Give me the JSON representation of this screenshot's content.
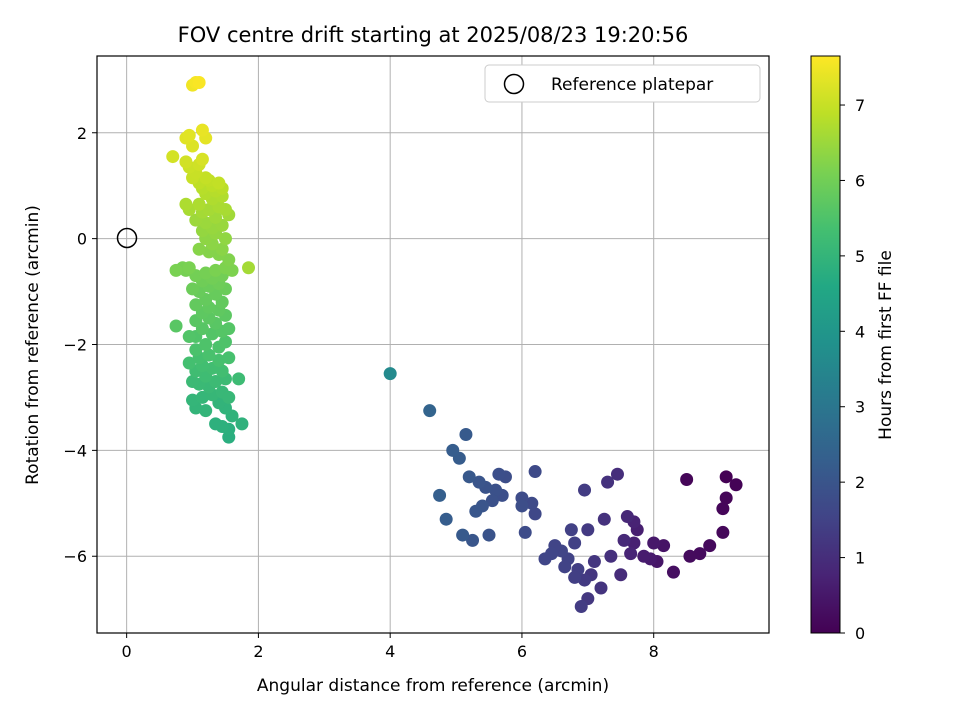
{
  "chart_data": {
    "type": "scatter",
    "title": "FOV centre drift starting at 2025/08/23 19:20:56",
    "xlabel": "Angular distance from reference (arcmin)",
    "ylabel": "Rotation from reference (arcmin)",
    "xlim": [
      -0.45,
      9.75
    ],
    "ylim": [
      -7.45,
      3.45
    ],
    "xticks": [
      0,
      2,
      4,
      6,
      8
    ],
    "xtick_labels": [
      "0",
      "2",
      "4",
      "6",
      "8"
    ],
    "yticks": [
      -6,
      -4,
      -2,
      0,
      2
    ],
    "ytick_labels": [
      "−6",
      "−4",
      "−2",
      "0",
      "2"
    ],
    "grid": true,
    "legend_position": "top-right",
    "reference": {
      "name": "Reference platepar",
      "x": 0,
      "y": 0
    },
    "colorbar": {
      "label": "Hours from first FF file",
      "colormap": "viridis",
      "min": 0,
      "max": 7.65,
      "ticks": [
        0,
        1,
        2,
        3,
        4,
        5,
        6,
        7
      ],
      "tick_labels": [
        "0",
        "1",
        "2",
        "3",
        "4",
        "5",
        "6",
        "7"
      ]
    },
    "series": [
      {
        "points": [
          [
            9.1,
            -4.5,
            0.0
          ],
          [
            9.25,
            -4.65,
            0.05
          ],
          [
            9.1,
            -4.9,
            0.1
          ],
          [
            9.05,
            -5.1,
            0.12
          ],
          [
            9.05,
            -5.55,
            0.15
          ],
          [
            8.85,
            -5.8,
            0.18
          ],
          [
            8.7,
            -5.95,
            0.2
          ],
          [
            8.55,
            -6.0,
            0.22
          ],
          [
            8.5,
            -4.55,
            0.1
          ],
          [
            8.3,
            -6.3,
            0.3
          ],
          [
            8.15,
            -5.8,
            0.4
          ],
          [
            8.05,
            -6.1,
            0.45
          ],
          [
            8.0,
            -5.75,
            0.5
          ],
          [
            7.95,
            -6.05,
            0.55
          ],
          [
            7.85,
            -6.0,
            0.6
          ],
          [
            7.75,
            -5.5,
            0.65
          ],
          [
            7.7,
            -5.75,
            0.7
          ],
          [
            7.7,
            -5.35,
            0.75
          ],
          [
            7.65,
            -5.95,
            0.8
          ],
          [
            7.6,
            -5.25,
            0.85
          ],
          [
            7.55,
            -5.7,
            0.9
          ],
          [
            7.5,
            -6.35,
            0.95
          ],
          [
            7.45,
            -4.45,
            1.0
          ],
          [
            7.35,
            -6.0,
            1.05
          ],
          [
            7.3,
            -4.6,
            1.1
          ],
          [
            7.25,
            -5.3,
            1.1
          ],
          [
            7.2,
            -6.6,
            1.15
          ],
          [
            7.1,
            -6.1,
            1.2
          ],
          [
            7.05,
            -6.35,
            1.2
          ],
          [
            7.0,
            -6.8,
            1.25
          ],
          [
            7.0,
            -5.5,
            1.3
          ],
          [
            6.95,
            -6.45,
            1.3
          ],
          [
            6.95,
            -4.75,
            1.35
          ],
          [
            6.9,
            -6.95,
            1.35
          ],
          [
            6.85,
            -6.25,
            1.4
          ],
          [
            6.8,
            -6.4,
            1.4
          ],
          [
            6.8,
            -5.75,
            1.45
          ],
          [
            6.75,
            -5.5,
            1.45
          ],
          [
            6.7,
            -6.05,
            1.5
          ],
          [
            6.65,
            -6.2,
            1.5
          ],
          [
            6.6,
            -5.9,
            1.55
          ],
          [
            6.5,
            -5.8,
            1.55
          ],
          [
            6.45,
            -5.95,
            1.6
          ],
          [
            6.35,
            -6.05,
            1.6
          ],
          [
            6.2,
            -5.2,
            1.65
          ],
          [
            6.2,
            -4.4,
            1.7
          ],
          [
            6.15,
            -5.0,
            1.7
          ],
          [
            6.05,
            -5.55,
            1.75
          ],
          [
            6.0,
            -4.9,
            1.75
          ],
          [
            6.0,
            -5.05,
            1.8
          ],
          [
            5.75,
            -4.5,
            1.8
          ],
          [
            5.7,
            -4.85,
            1.85
          ],
          [
            5.65,
            -4.45,
            1.85
          ],
          [
            5.6,
            -4.75,
            1.9
          ],
          [
            5.55,
            -4.95,
            1.9
          ],
          [
            5.5,
            -5.6,
            1.95
          ],
          [
            5.45,
            -4.7,
            1.95
          ],
          [
            5.4,
            -5.05,
            2.0
          ],
          [
            5.35,
            -4.6,
            2.0
          ],
          [
            5.3,
            -5.15,
            2.05
          ],
          [
            5.25,
            -5.7,
            2.05
          ],
          [
            5.2,
            -4.5,
            2.1
          ],
          [
            5.15,
            -3.7,
            2.15
          ],
          [
            5.1,
            -5.6,
            2.15
          ],
          [
            5.05,
            -4.15,
            2.2
          ],
          [
            4.95,
            -4.0,
            2.25
          ],
          [
            4.85,
            -5.3,
            2.25
          ],
          [
            4.75,
            -4.85,
            2.3
          ],
          [
            4.6,
            -3.25,
            2.45
          ],
          [
            4.0,
            -2.55,
            3.6
          ]
        ]
      },
      {
        "points": [
          [
            1.55,
            -3.75,
            4.8
          ],
          [
            1.55,
            -3.6,
            4.82
          ],
          [
            1.45,
            -3.55,
            4.85
          ],
          [
            1.35,
            -3.5,
            4.87
          ],
          [
            1.75,
            -3.5,
            4.9
          ],
          [
            1.6,
            -3.35,
            4.92
          ],
          [
            1.5,
            -3.2,
            4.95
          ],
          [
            1.4,
            -3.1,
            4.97
          ],
          [
            1.2,
            -3.25,
            5.0
          ],
          [
            1.05,
            -3.2,
            5.0
          ],
          [
            1.0,
            -3.05,
            5.02
          ],
          [
            1.15,
            -3.0,
            5.05
          ],
          [
            1.3,
            -2.95,
            5.07
          ],
          [
            1.45,
            -2.9,
            5.1
          ],
          [
            1.55,
            -3.0,
            5.1
          ],
          [
            1.25,
            -2.8,
            5.12
          ],
          [
            1.1,
            -2.75,
            5.15
          ],
          [
            1.0,
            -2.7,
            5.17
          ],
          [
            1.35,
            -2.7,
            5.2
          ],
          [
            1.5,
            -2.65,
            5.2
          ],
          [
            1.7,
            -2.65,
            5.22
          ],
          [
            1.2,
            -2.6,
            5.25
          ],
          [
            1.05,
            -2.5,
            5.27
          ],
          [
            1.45,
            -2.5,
            5.3
          ],
          [
            1.3,
            -2.45,
            5.3
          ],
          [
            1.15,
            -2.4,
            5.32
          ],
          [
            0.95,
            -2.35,
            5.35
          ],
          [
            1.1,
            -2.25,
            5.37
          ],
          [
            1.4,
            -2.3,
            5.4
          ],
          [
            1.55,
            -2.25,
            5.4
          ],
          [
            1.25,
            -2.2,
            5.42
          ],
          [
            1.05,
            -2.1,
            5.45
          ],
          [
            1.4,
            -2.05,
            5.47
          ],
          [
            1.2,
            -2.0,
            5.5
          ],
          [
            1.5,
            -1.95,
            5.5
          ],
          [
            1.05,
            -1.85,
            5.52
          ],
          [
            0.95,
            -1.85,
            5.55
          ],
          [
            1.3,
            -1.8,
            5.57
          ],
          [
            1.45,
            -1.75,
            5.6
          ],
          [
            1.55,
            -1.7,
            5.6
          ],
          [
            1.15,
            -1.7,
            5.62
          ],
          [
            1.35,
            -1.6,
            5.65
          ],
          [
            0.75,
            -1.65,
            5.65
          ],
          [
            1.05,
            -1.55,
            5.67
          ],
          [
            1.25,
            -1.5,
            5.7
          ],
          [
            1.5,
            -1.45,
            5.7
          ],
          [
            1.15,
            -1.4,
            5.72
          ],
          [
            1.4,
            -1.35,
            5.75
          ],
          [
            1.25,
            -1.3,
            5.77
          ],
          [
            1.05,
            -1.25,
            5.8
          ],
          [
            1.45,
            -1.2,
            5.8
          ],
          [
            1.2,
            -1.15,
            5.82
          ],
          [
            1.35,
            -1.05,
            5.85
          ],
          [
            1.1,
            -1.0,
            5.87
          ],
          [
            1.5,
            -0.95,
            5.9
          ],
          [
            1.25,
            -0.9,
            5.9
          ],
          [
            1.0,
            -0.95,
            5.92
          ],
          [
            1.4,
            -0.85,
            5.95
          ],
          [
            1.15,
            -0.8,
            5.97
          ],
          [
            1.3,
            -0.75,
            6.0
          ],
          [
            1.45,
            -0.7,
            6.0
          ],
          [
            1.05,
            -0.7,
            6.02
          ],
          [
            1.2,
            -0.65,
            6.05
          ],
          [
            0.9,
            -0.6,
            6.05
          ],
          [
            0.85,
            -0.55,
            6.07
          ],
          [
            0.75,
            -0.6,
            6.1
          ],
          [
            0.95,
            -0.55,
            6.1
          ],
          [
            1.35,
            -0.6,
            6.12
          ],
          [
            1.5,
            -0.55,
            6.15
          ],
          [
            1.6,
            -0.6,
            6.15
          ],
          [
            1.55,
            -0.4,
            6.2
          ],
          [
            1.4,
            -0.3,
            6.22
          ],
          [
            1.25,
            -0.25,
            6.25
          ],
          [
            1.1,
            -0.2,
            6.27
          ],
          [
            1.45,
            -0.2,
            6.3
          ],
          [
            1.3,
            -0.1,
            6.32
          ],
          [
            1.2,
            0.0,
            6.35
          ],
          [
            1.5,
            0.0,
            6.37
          ],
          [
            1.35,
            0.1,
            6.4
          ],
          [
            1.15,
            0.15,
            6.42
          ],
          [
            1.3,
            0.2,
            6.45
          ],
          [
            1.45,
            0.25,
            6.47
          ],
          [
            1.2,
            0.3,
            6.5
          ],
          [
            1.05,
            0.35,
            6.52
          ],
          [
            1.35,
            0.4,
            6.55
          ],
          [
            1.55,
            0.45,
            6.57
          ],
          [
            1.15,
            0.5,
            6.6
          ],
          [
            1.25,
            0.55,
            6.62
          ],
          [
            1.5,
            0.55,
            6.65
          ],
          [
            0.95,
            0.55,
            6.65
          ],
          [
            1.4,
            0.6,
            6.67
          ],
          [
            1.1,
            0.65,
            6.7
          ],
          [
            0.9,
            0.65,
            6.7
          ],
          [
            1.3,
            0.75,
            6.72
          ],
          [
            1.45,
            0.8,
            6.75
          ],
          [
            1.2,
            0.85,
            6.77
          ],
          [
            1.35,
            0.9,
            6.8
          ],
          [
            1.15,
            0.95,
            6.82
          ],
          [
            1.45,
            0.95,
            6.85
          ],
          [
            1.3,
            1.0,
            6.87
          ],
          [
            1.1,
            1.05,
            6.9
          ],
          [
            1.25,
            1.1,
            6.92
          ],
          [
            1.4,
            1.05,
            6.95
          ],
          [
            1.2,
            1.15,
            6.97
          ],
          [
            1.0,
            1.15,
            7.0
          ],
          [
            1.05,
            1.25,
            7.02
          ],
          [
            0.95,
            1.35,
            7.05
          ],
          [
            1.1,
            1.4,
            7.1
          ],
          [
            0.9,
            1.45,
            7.12
          ],
          [
            0.7,
            1.55,
            7.15
          ],
          [
            1.15,
            1.5,
            7.2
          ],
          [
            1.0,
            1.75,
            7.25
          ],
          [
            0.9,
            1.9,
            7.3
          ],
          [
            0.95,
            1.95,
            7.32
          ],
          [
            1.2,
            1.9,
            7.35
          ],
          [
            1.15,
            2.05,
            7.4
          ],
          [
            1.0,
            2.9,
            7.5
          ],
          [
            1.05,
            2.95,
            7.55
          ],
          [
            1.1,
            2.95,
            7.6
          ],
          [
            1.85,
            -0.55,
            6.6
          ]
        ]
      }
    ]
  }
}
